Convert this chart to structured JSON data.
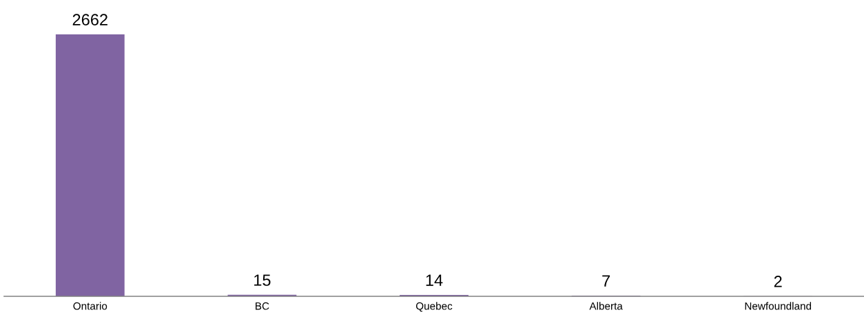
{
  "chart_data": {
    "type": "bar",
    "categories": [
      "Ontario",
      "BC",
      "Quebec",
      "Alberta",
      "Newfoundland"
    ],
    "values": [
      2662,
      15,
      14,
      7,
      2
    ],
    "color": "#8064a2",
    "data_labels": true,
    "grid": false,
    "legend": false
  }
}
